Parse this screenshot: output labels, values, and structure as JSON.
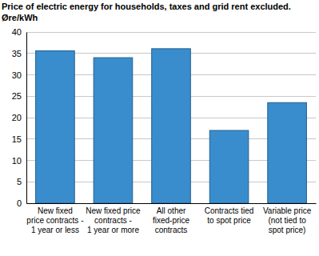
{
  "chart_data": {
    "type": "bar",
    "title": "Price of electric energy for households, taxes and grid rent excluded.\nØre/kWh",
    "categories": [
      "New fixed\nprice contracts -\n1 year or less",
      "New fixed price\ncontracts -\n1 year or more",
      "All other\nfixed-price\ncontracts",
      "Contracts tied\nto spot price",
      "Variable price\n(not tied to\nspot price)"
    ],
    "values": [
      35.6,
      34.0,
      36.1,
      17.0,
      23.5
    ],
    "color": "#3a8dcd",
    "ylim": [
      0,
      40
    ],
    "yticks": [
      0,
      5,
      10,
      15,
      20,
      25,
      30,
      35,
      40
    ],
    "grid": true
  }
}
